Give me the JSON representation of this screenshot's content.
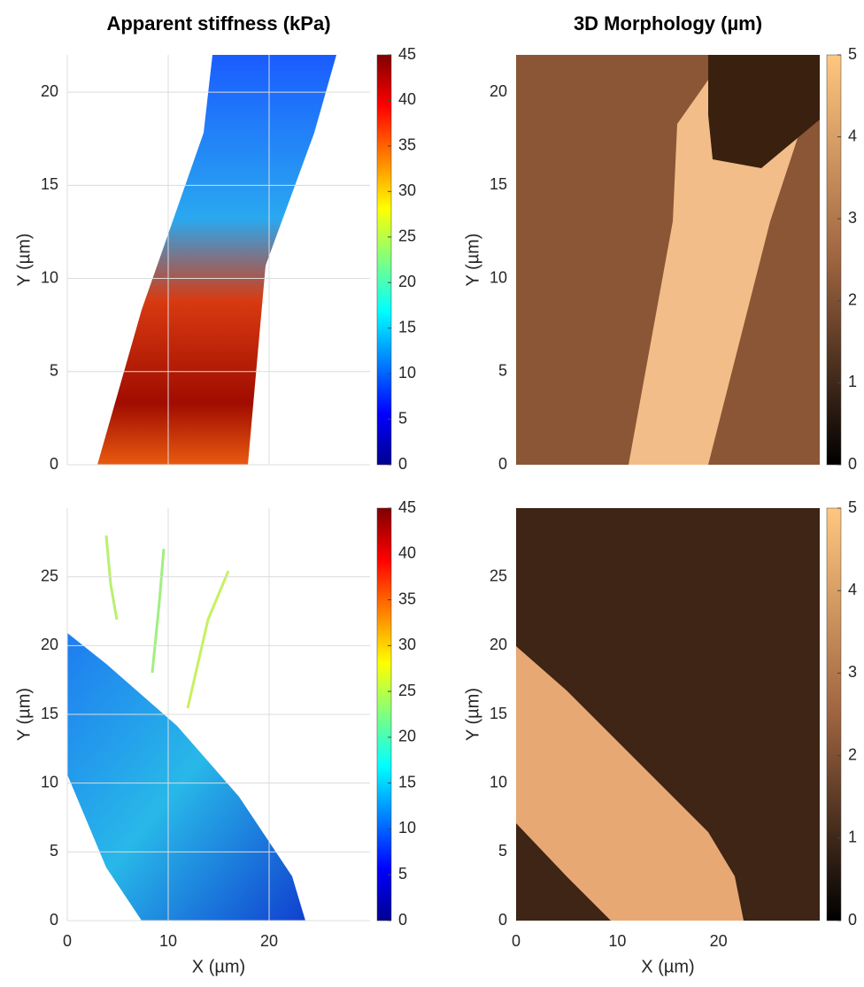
{
  "chart_data": [
    {
      "type": "heatmap",
      "title": "Apparent stiffness (kPa)",
      "ylabel": "Y (µm)",
      "xlim": [
        0,
        30
      ],
      "ylim": [
        0,
        22
      ],
      "xticks": [
        0,
        10,
        20
      ],
      "show_xticklabels": false,
      "yticks": [
        0,
        5,
        10,
        15,
        20
      ],
      "grid": true,
      "colorbar": {
        "colormap": "jet",
        "lim": [
          0,
          45
        ],
        "ticks": [
          0,
          5,
          10,
          15,
          20,
          25,
          30,
          35,
          40,
          45
        ]
      }
    },
    {
      "type": "heatmap",
      "title": "3D Morphology  (µm)",
      "ylabel": "Y (µm)",
      "xlim": [
        0,
        30
      ],
      "ylim": [
        0,
        22
      ],
      "xticks": [
        0,
        10,
        20
      ],
      "show_xticklabels": false,
      "yticks": [
        0,
        5,
        10,
        15,
        20
      ],
      "grid": false,
      "colorbar": {
        "colormap": "copper",
        "lim": [
          0,
          5
        ],
        "ticks": [
          0,
          1,
          2,
          3,
          4,
          5
        ]
      }
    },
    {
      "type": "heatmap",
      "xlabel": "X (µm)",
      "ylabel": "Y (µm)",
      "xlim": [
        0,
        30
      ],
      "ylim": [
        0,
        30
      ],
      "xticks": [
        0,
        10,
        20
      ],
      "show_xticklabels": true,
      "yticks": [
        0,
        5,
        10,
        15,
        20,
        25
      ],
      "grid": true,
      "colorbar": {
        "colormap": "jet",
        "lim": [
          0,
          45
        ],
        "ticks": [
          0,
          5,
          10,
          15,
          20,
          25,
          30,
          35,
          40,
          45
        ]
      }
    },
    {
      "type": "heatmap",
      "xlabel": "X (µm)",
      "ylabel": "Y (µm)",
      "xlim": [
        0,
        30
      ],
      "ylim": [
        0,
        30
      ],
      "xticks": [
        0,
        10,
        20
      ],
      "show_xticklabels": true,
      "yticks": [
        0,
        5,
        10,
        15,
        20,
        25
      ],
      "grid": false,
      "colorbar": {
        "colormap": "copper",
        "lim": [
          0,
          5
        ],
        "ticks": [
          0,
          1,
          2,
          3,
          4,
          5
        ]
      }
    }
  ]
}
